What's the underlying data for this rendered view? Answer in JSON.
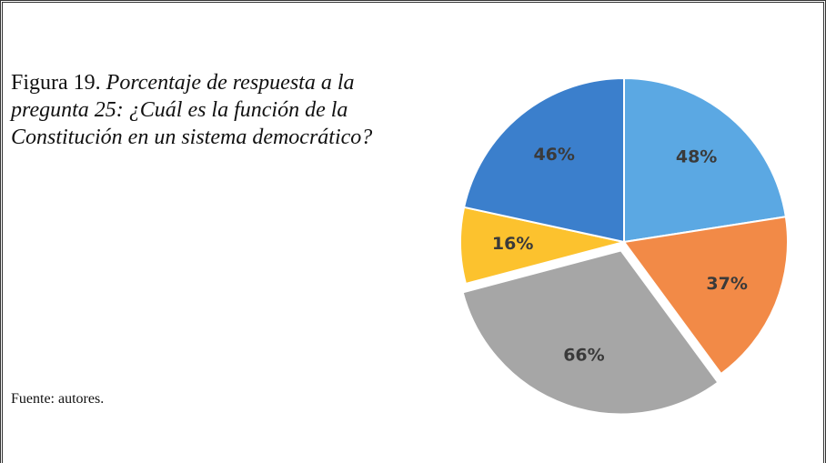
{
  "chart_data": {
    "type": "pie",
    "figure_label": "Figura 19.",
    "title": "Porcentaje de respuesta a la pregunta 25: ¿Cuál es la función de la Constitución en un sistema democrático?",
    "source": "Fuente: autores.",
    "values": [
      48,
      37,
      66,
      16,
      46
    ],
    "value_labels": [
      "48%",
      "37%",
      "66%",
      "16%",
      "46%"
    ],
    "colors": [
      "#5ba8e3",
      "#f28a47",
      "#a6a6a6",
      "#fcc22e",
      "#3b7fcc"
    ],
    "exploded": [
      false,
      false,
      true,
      false,
      false
    ]
  }
}
